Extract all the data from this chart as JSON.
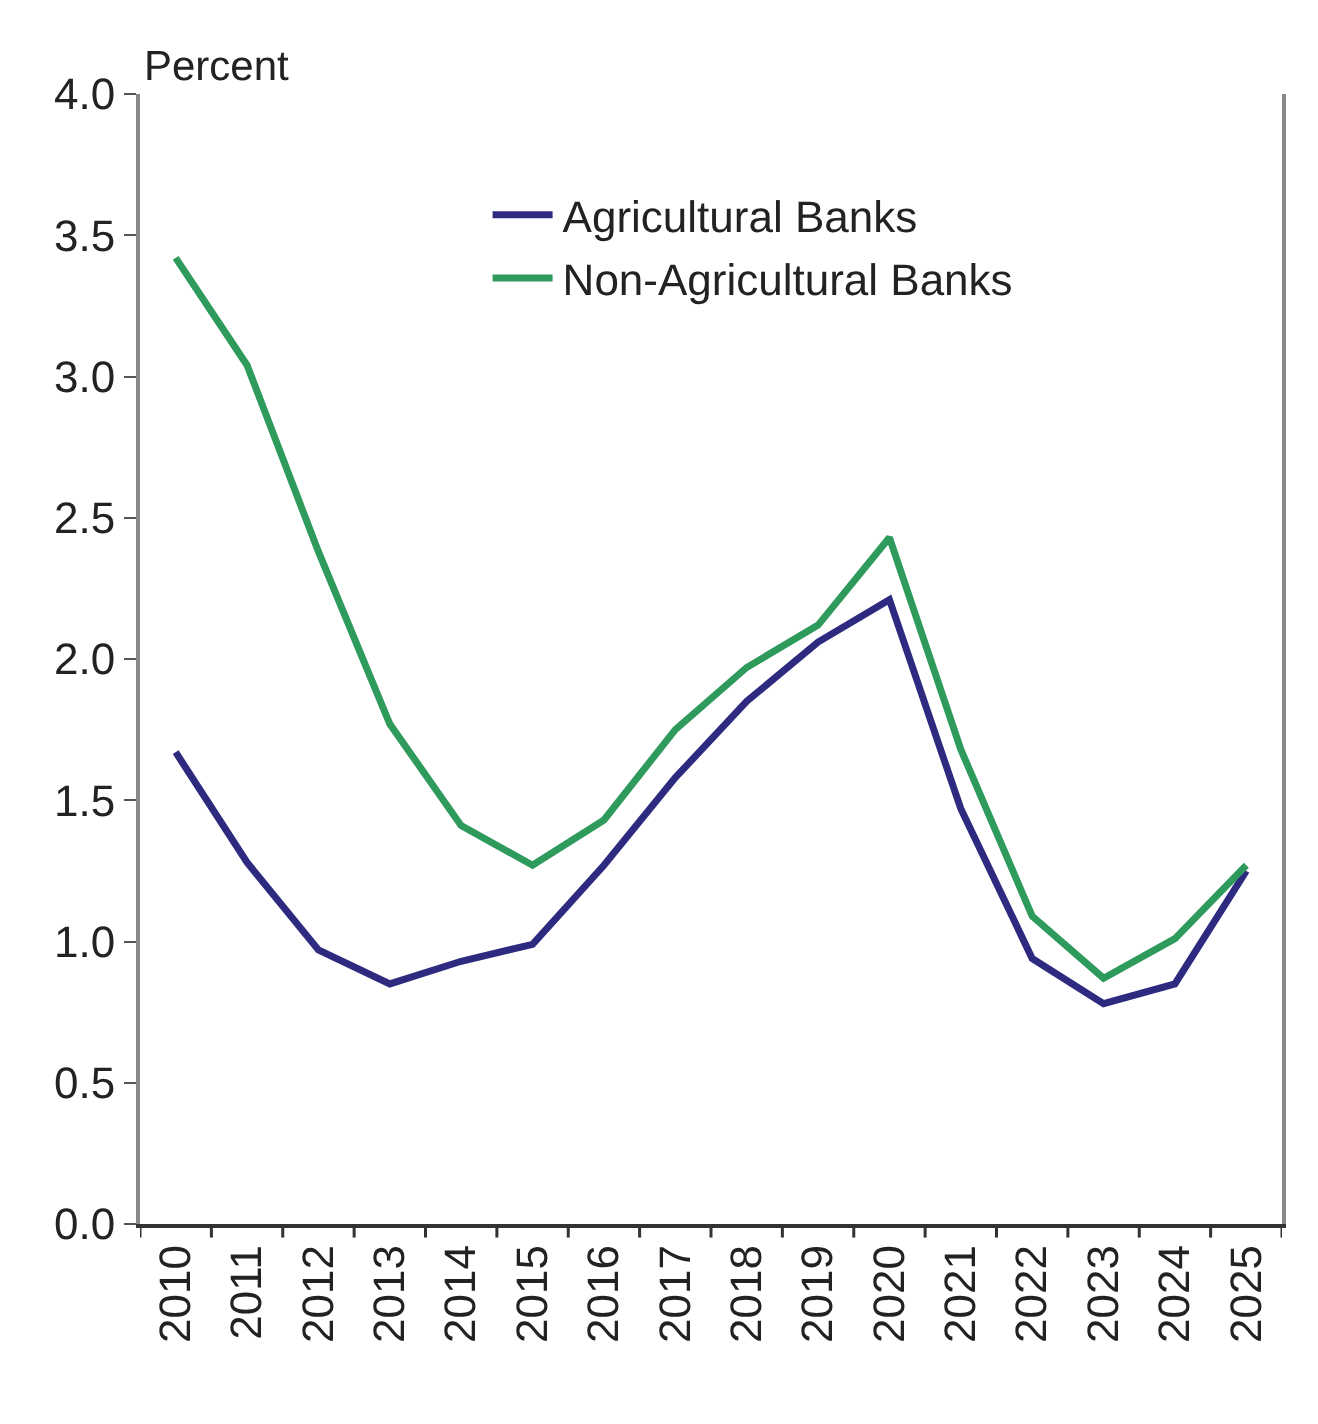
{
  "chart_data": {
    "type": "line",
    "ylabel": "Percent",
    "categories": [
      "2010",
      "2011",
      "2012",
      "2013",
      "2014",
      "2015",
      "2016",
      "2017",
      "2018",
      "2019",
      "2020",
      "2021",
      "2022",
      "2023",
      "2024",
      "2025"
    ],
    "series": [
      {
        "name": "Agricultural Banks",
        "color": "#2e2a80",
        "values": [
          1.67,
          1.28,
          0.97,
          0.85,
          0.93,
          0.99,
          1.27,
          1.58,
          1.85,
          2.06,
          2.21,
          1.47,
          0.94,
          0.78,
          0.85,
          1.25
        ]
      },
      {
        "name": "Non-Agricultural Banks",
        "color": "#2e9a5c",
        "values": [
          3.42,
          3.04,
          2.38,
          1.77,
          1.41,
          1.27,
          1.43,
          1.75,
          1.97,
          2.12,
          2.43,
          1.68,
          1.09,
          0.87,
          1.01,
          1.27
        ]
      }
    ],
    "ylim": [
      0,
      4
    ],
    "yticks": [
      {
        "value": 0,
        "label": "0.0"
      },
      {
        "value": 0.5,
        "label": "0.5"
      },
      {
        "value": 1,
        "label": "1.0"
      },
      {
        "value": 1.5,
        "label": "1.5"
      },
      {
        "value": 2,
        "label": "2.0"
      },
      {
        "value": 2.5,
        "label": "2.5"
      },
      {
        "value": 3,
        "label": "3.0"
      },
      {
        "value": 3.5,
        "label": "3.5"
      },
      {
        "value": 4,
        "label": "4.0"
      }
    ],
    "grid": false,
    "legend": "top",
    "marker": "none",
    "line_style": "solid"
  }
}
